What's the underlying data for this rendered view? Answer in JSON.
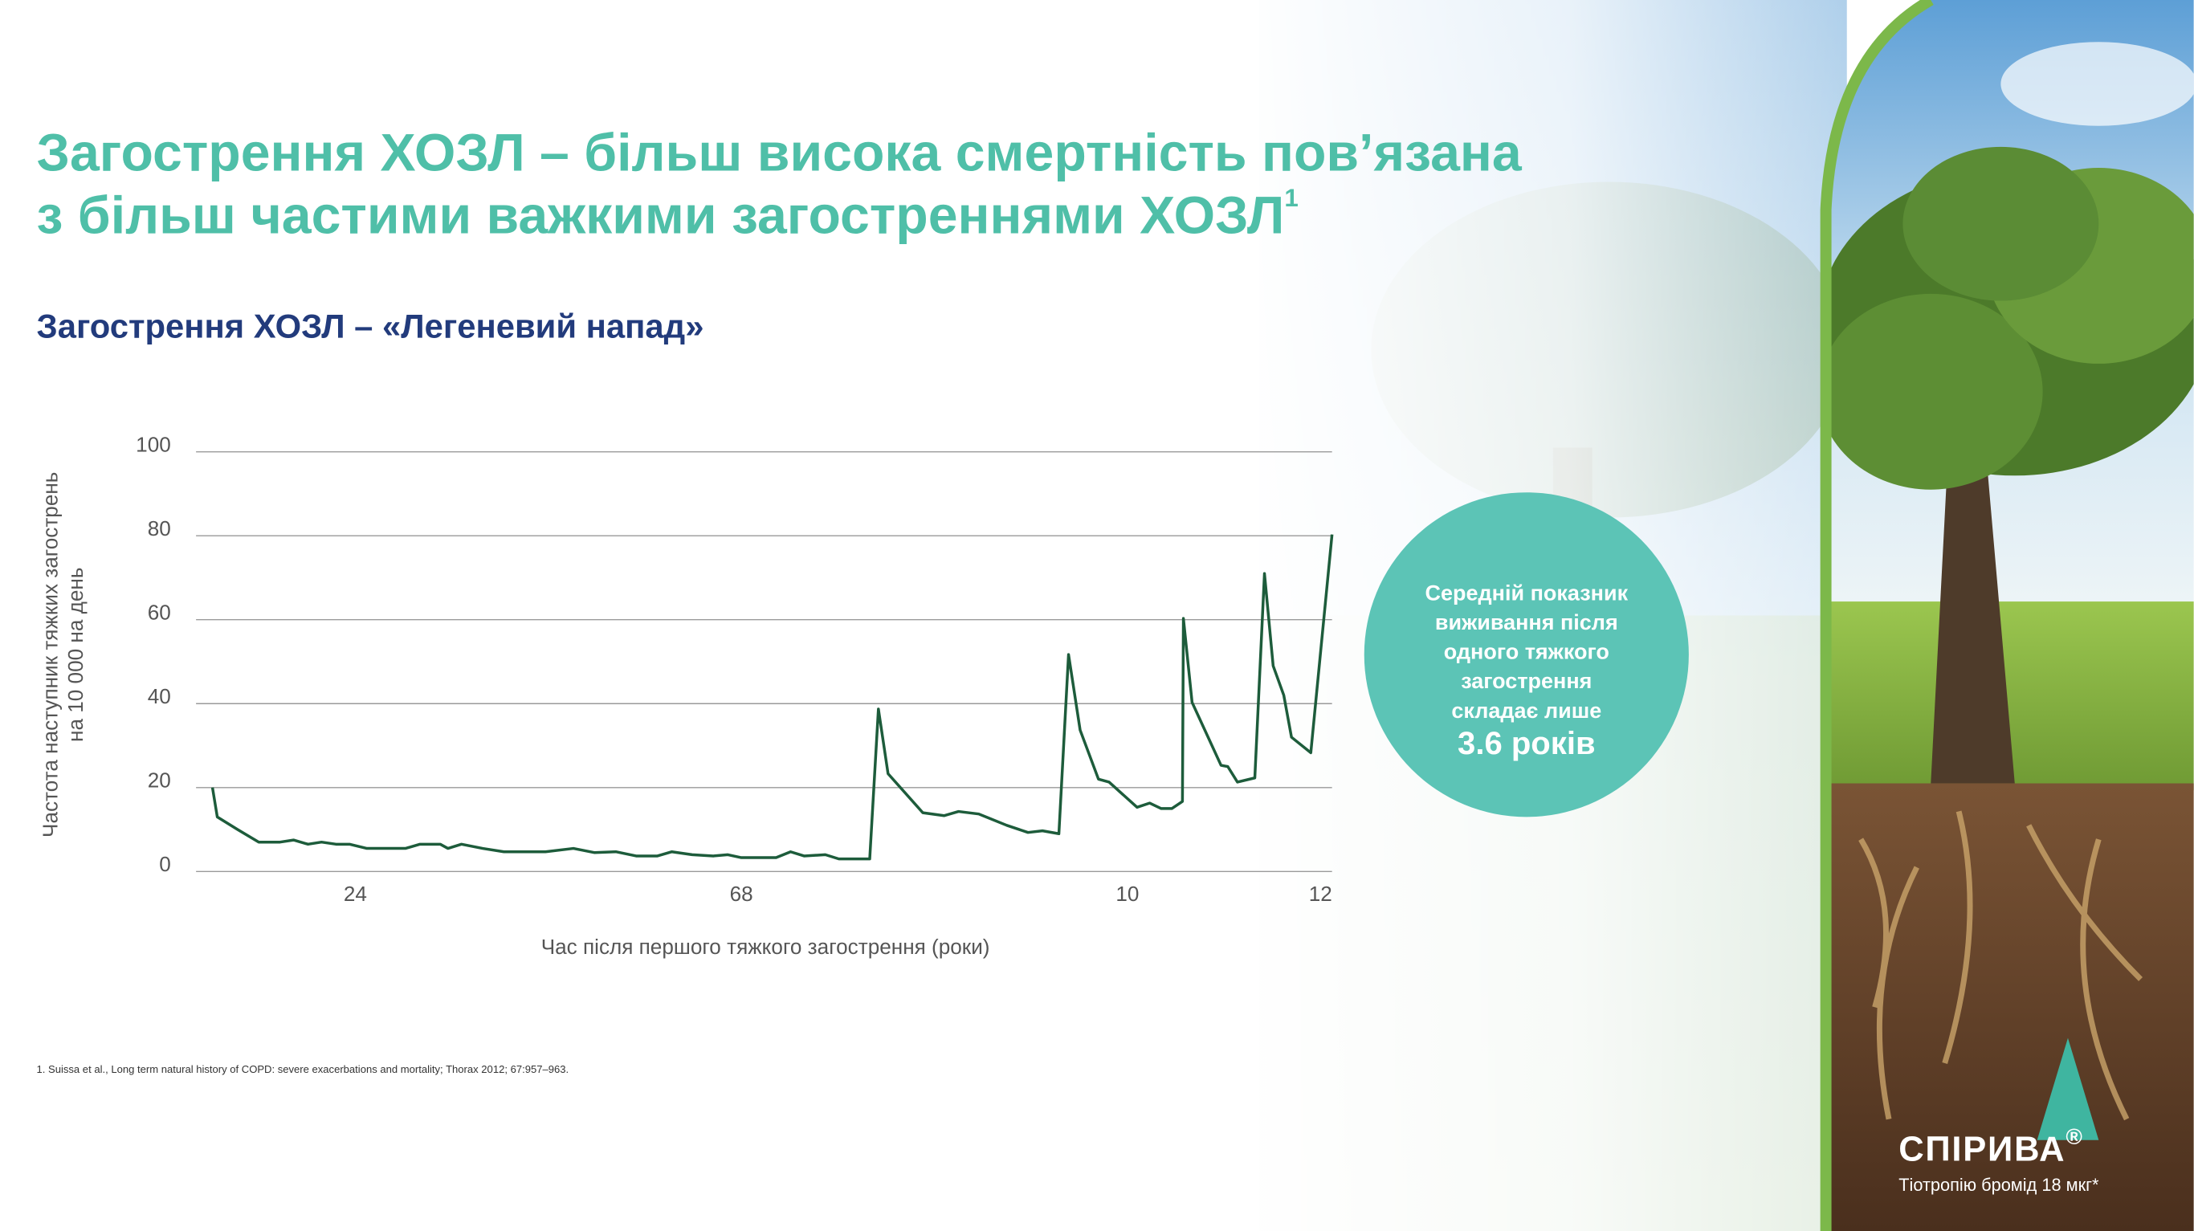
{
  "title": [
    "Загострення ХОЗЛ – більш висока смертність пов’язана",
    "з більш частими важкими загостреннями ХОЗЛ"
  ],
  "title_note": "1",
  "chart_data": {
    "type": "line",
    "title": "Загострення ХОЗЛ – «Легеневий напад»",
    "x_label": "Час після першого тяжкого загострення (роки)",
    "y_label": [
      "Частота наступник тяжких загострень",
      "на 10 000 на день"
    ],
    "x": [
      0.52,
      0.57,
      0.78,
      1.0,
      1.14,
      1.22,
      1.36,
      1.51,
      1.65,
      1.8,
      1.94,
      2.12,
      2.3,
      2.52,
      2.67,
      2.88,
      2.96,
      3.1,
      3.32,
      3.54,
      3.75,
      3.97,
      4.26,
      4.48,
      4.7,
      4.91,
      5.13,
      5.28,
      5.49,
      5.71,
      5.86,
      6.0,
      6.36,
      6.51,
      6.65,
      6.87,
      7.01,
      7.33,
      7.42,
      7.52,
      7.88,
      8.1,
      8.25,
      8.46,
      8.75,
      8.97,
      9.12,
      9.29,
      9.39,
      9.51,
      9.7,
      9.81,
      10.1,
      10.23,
      10.35,
      10.46,
      10.57,
      10.58,
      10.67,
      10.97,
      11.04,
      11.14,
      11.32,
      11.42,
      11.51,
      11.62,
      11.7,
      11.9,
      12.12
    ],
    "values": [
      20,
      13,
      10,
      7,
      7,
      7,
      7.5,
      6.5,
      7,
      6.5,
      6.5,
      5.5,
      5.5,
      5.5,
      6.5,
      6.5,
      5.5,
      6.5,
      5.5,
      4.7,
      4.7,
      4.7,
      5.5,
      4.5,
      4.7,
      3.7,
      3.7,
      4.7,
      4,
      3.7,
      4,
      3.3,
      3.3,
      4.7,
      3.7,
      4,
      3,
      3,
      38.7,
      23.3,
      14,
      13.3,
      14.3,
      13.7,
      11,
      9.3,
      9.7,
      9,
      51.7,
      33.7,
      22,
      21.3,
      15.3,
      16.3,
      15,
      15,
      16.7,
      60.3,
      40.3,
      25.3,
      25,
      21.3,
      22.3,
      71,
      49,
      42,
      32,
      28.3,
      80.3
    ],
    "color": "#1d5c3b",
    "xlim": [
      0.35,
      12.12
    ],
    "ylim": [
      0,
      100
    ],
    "xticks": [
      {
        "value": 2,
        "label": "24"
      },
      {
        "value": 6,
        "label": "68"
      },
      10,
      12
    ],
    "yticks": [
      0,
      20,
      40,
      60,
      80,
      100
    ],
    "grid": true
  },
  "callout": {
    "lines": [
      "Середній показник",
      "виживання після",
      "одного тяжкого",
      "загострення",
      "складає лише"
    ],
    "highlight": "3.6 років"
  },
  "footnote": "1. Suissa et al., Long term natural history of COPD: severe exacerbations and mortality; Thorax 2012; 67:957–963.",
  "brand": {
    "name": "СПІРИВА",
    "mark": "®",
    "subtitle": "Тіотропію бромід 18 мкг*"
  }
}
